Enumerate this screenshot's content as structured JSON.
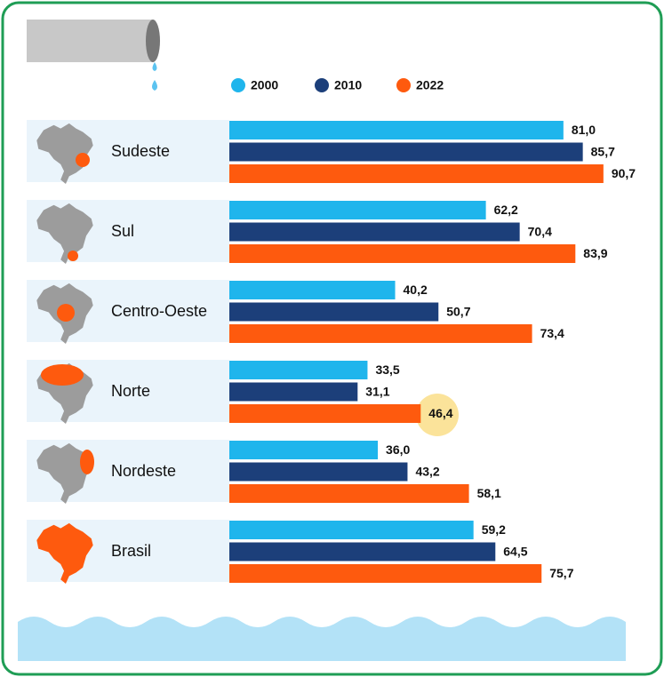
{
  "chart_data": {
    "type": "bar",
    "orientation": "horizontal",
    "categories": [
      "Sudeste",
      "Sul",
      "Centro-Oeste",
      "Norte",
      "Nordeste",
      "Brasil"
    ],
    "series": [
      {
        "name": "2000",
        "color": "#1fb5ec",
        "values": [
          81.0,
          62.2,
          40.2,
          33.5,
          36.0,
          59.2
        ],
        "value_labels": [
          "81,0",
          "62,2",
          "40,2",
          "33,5",
          "36,0",
          "59,2"
        ]
      },
      {
        "name": "2010",
        "color": "#1c3f7a",
        "values": [
          85.7,
          70.4,
          50.7,
          31.1,
          43.2,
          64.5
        ],
        "value_labels": [
          "85,7",
          "70,4",
          "50,7",
          "31,1",
          "43,2",
          "64,5"
        ]
      },
      {
        "name": "2022",
        "color": "#fe5a0e",
        "values": [
          90.7,
          83.9,
          73.4,
          46.4,
          58.1,
          75.7
        ],
        "value_labels": [
          "90,7",
          "83,9",
          "73,4",
          "46,4",
          "58,1",
          "75,7"
        ]
      }
    ],
    "xlim": [
      0,
      100
    ]
  }
}
